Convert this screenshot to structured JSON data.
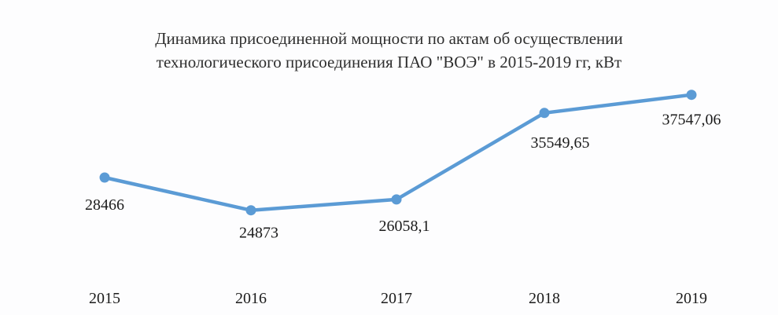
{
  "chart_data": {
    "type": "line",
    "title_lines": [
      "Динамика присоединенной мощности по актам об осуществлении",
      "технологического присоединения ПАО \"ВОЭ\" в 2015-2019 гг, кВт"
    ],
    "categories": [
      "2015",
      "2016",
      "2017",
      "2018",
      "2019"
    ],
    "values": [
      28466,
      24873,
      26058.1,
      35549.65,
      37547.06
    ],
    "data_labels": [
      "28466",
      "24873",
      "26058,1",
      "35549,65",
      "37547,06"
    ],
    "ylim": [
      0,
      45000
    ],
    "grid": false,
    "legend": "none",
    "colors": {
      "line": "#5b9bd5",
      "marker": "#5b9bd5",
      "text": "#1c1c1c"
    }
  }
}
